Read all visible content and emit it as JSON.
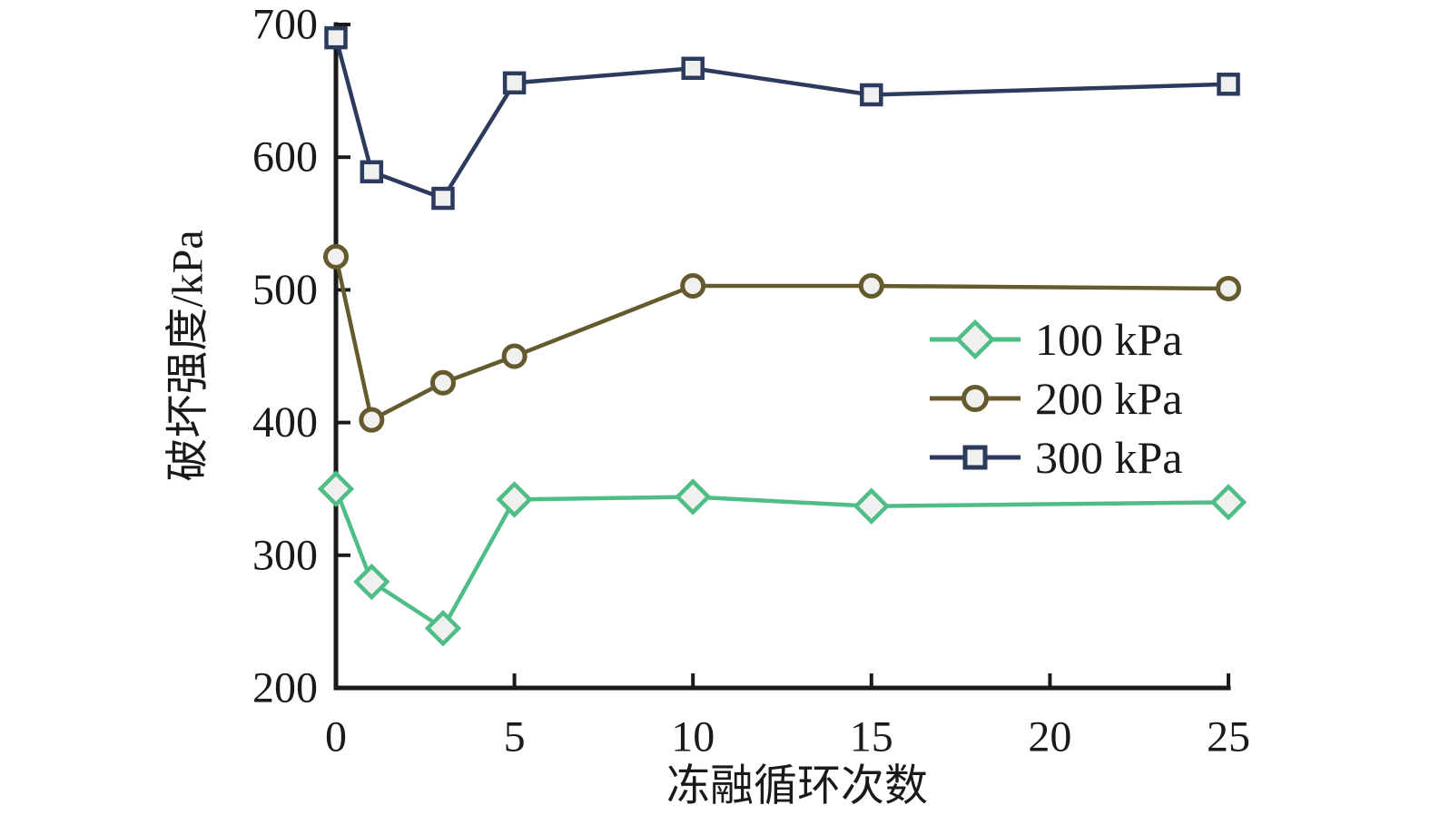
{
  "chart_data": {
    "type": "line",
    "title": "",
    "xlabel": "冻融循环次数",
    "ylabel": "破坏强度/kPa",
    "xlim": [
      0,
      25
    ],
    "ylim": [
      200,
      700
    ],
    "x_ticks": [
      0,
      5,
      10,
      15,
      20,
      25
    ],
    "y_ticks": [
      200,
      300,
      400,
      500,
      600,
      700
    ],
    "grid": false,
    "legend_position": "right-center",
    "x": [
      0,
      1,
      3,
      5,
      10,
      15,
      25
    ],
    "series": [
      {
        "name": "100 kPa",
        "marker": "diamond",
        "color": "#4fbd86",
        "values": [
          350,
          280,
          245,
          342,
          344,
          337,
          340
        ]
      },
      {
        "name": "200 kPa",
        "marker": "circle",
        "color": "#655a2e",
        "values": [
          525,
          402,
          430,
          450,
          503,
          503,
          501
        ]
      },
      {
        "name": "300 kPa",
        "marker": "square",
        "color": "#2c3a5e",
        "values": [
          690,
          589,
          569,
          656,
          667,
          647,
          655
        ]
      }
    ],
    "marker_fill": "#f0f0ee",
    "axis_color": "#1a1a1a"
  }
}
